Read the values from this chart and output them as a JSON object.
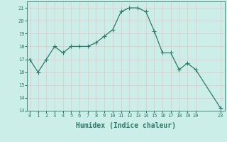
{
  "x": [
    0,
    1,
    2,
    3,
    4,
    5,
    6,
    7,
    8,
    9,
    10,
    11,
    12,
    13,
    14,
    15,
    16,
    17,
    18,
    19,
    20,
    23
  ],
  "y": [
    17.0,
    16.0,
    17.0,
    18.0,
    17.5,
    18.0,
    18.0,
    18.0,
    18.3,
    18.8,
    19.3,
    20.7,
    21.0,
    21.0,
    20.7,
    19.2,
    17.5,
    17.5,
    16.2,
    16.7,
    16.2,
    13.2
  ],
  "line_color": "#2d7a6a",
  "marker": "+",
  "marker_size": 4,
  "marker_lw": 0.8,
  "xlabel": "Humidex (Indice chaleur)",
  "ylim": [
    13,
    21.5
  ],
  "xlim": [
    -0.3,
    23.5
  ],
  "yticks": [
    13,
    14,
    15,
    16,
    17,
    18,
    19,
    20,
    21
  ],
  "xticks": [
    0,
    1,
    2,
    3,
    4,
    5,
    6,
    7,
    8,
    9,
    10,
    11,
    12,
    13,
    14,
    15,
    16,
    17,
    18,
    19,
    20,
    23
  ],
  "bg_color": "#cceee8",
  "plot_bg_color": "#cceee8",
  "grid_color": "#e8c8c8",
  "axis_color": "#2d7a6a",
  "tick_color": "#2d7a6a",
  "label_color": "#2d7a6a",
  "font_size_ticks": 5,
  "font_size_xlabel": 7,
  "line_width": 0.9,
  "font_family": "monospace"
}
